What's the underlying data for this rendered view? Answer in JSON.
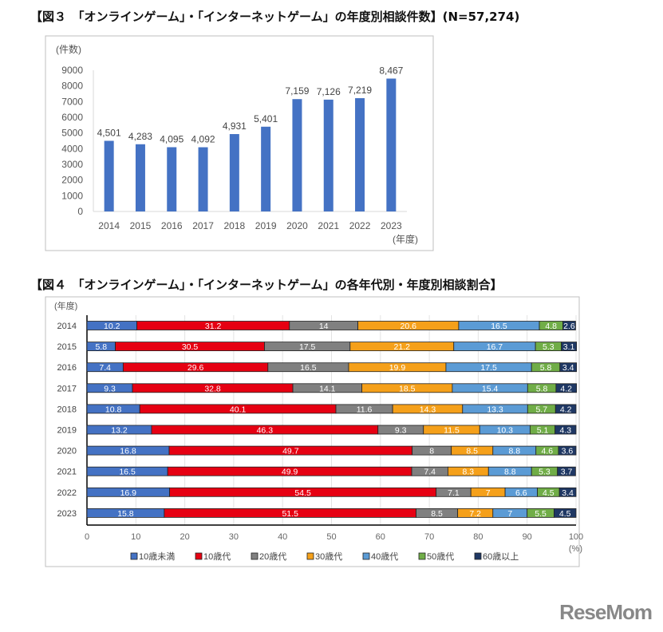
{
  "chart_data": [
    {
      "type": "bar",
      "title": "【図３　「オンラインゲーム」・「インターネットゲーム」の年度別相談件数】(N=57,274)",
      "ylabel": "(件数)",
      "xlabel": "(年度)",
      "categories": [
        "2014",
        "2015",
        "2016",
        "2017",
        "2018",
        "2019",
        "2020",
        "2021",
        "2022",
        "2023"
      ],
      "values": [
        4501,
        4283,
        4095,
        4092,
        4931,
        5401,
        7159,
        7126,
        7219,
        8467
      ],
      "data_labels": [
        "4,501",
        "4,283",
        "4,095",
        "4,092",
        "4,931",
        "5,401",
        "7,159",
        "7,126",
        "7,219",
        "8,467"
      ],
      "ylim": [
        0,
        9000
      ],
      "yticks": [
        0,
        1000,
        2000,
        3000,
        4000,
        5000,
        6000,
        7000,
        8000,
        9000
      ],
      "grid": false,
      "color": "#4472C4"
    },
    {
      "type": "bar",
      "orientation": "horizontal-stacked-100",
      "title": "【図４　「オンラインゲーム」・「インターネットゲーム」の各年代別・年度別相談割合】",
      "ylabel": "(年度)",
      "xlabel": "(%)",
      "categories": [
        "2014",
        "2015",
        "2016",
        "2017",
        "2018",
        "2019",
        "2020",
        "2021",
        "2022",
        "2023"
      ],
      "xlim": [
        0,
        100
      ],
      "xticks": [
        0,
        10,
        20,
        30,
        40,
        50,
        60,
        70,
        80,
        90,
        100
      ],
      "grid": true,
      "legend": "bottom",
      "series": [
        {
          "name": "10歳未満",
          "color": "#4472C4",
          "values": [
            10.2,
            5.8,
            7.4,
            9.3,
            10.8,
            13.2,
            16.8,
            16.5,
            16.9,
            15.8
          ]
        },
        {
          "name": "10歳代",
          "color": "#E60012",
          "values": [
            31.2,
            30.5,
            29.6,
            32.8,
            40.1,
            46.3,
            49.7,
            49.9,
            54.5,
            51.5
          ]
        },
        {
          "name": "20歳代",
          "color": "#808080",
          "values": [
            14,
            17.5,
            16.5,
            14.1,
            11.6,
            9.3,
            8,
            7.4,
            7.1,
            8.5
          ]
        },
        {
          "name": "30歳代",
          "color": "#F5A01A",
          "values": [
            20.6,
            21.2,
            19.9,
            18.5,
            14.3,
            11.5,
            8.5,
            8.3,
            7,
            7.2
          ]
        },
        {
          "name": "40歳代",
          "color": "#5B9BD5",
          "values": [
            16.5,
            16.7,
            17.5,
            15.4,
            13.3,
            10.3,
            8.8,
            8.8,
            6.6,
            7
          ]
        },
        {
          "name": "50歳代",
          "color": "#70AD47",
          "values": [
            4.8,
            5.3,
            5.8,
            5.8,
            5.7,
            5.1,
            4.6,
            5.3,
            4.5,
            5.5
          ]
        },
        {
          "name": "60歳以上",
          "color": "#1F3864",
          "values": [
            2.6,
            3.1,
            3.4,
            4.2,
            4.2,
            4.3,
            3.6,
            3.7,
            3.4,
            4.5
          ]
        }
      ]
    }
  ],
  "logo": "ReseMom"
}
